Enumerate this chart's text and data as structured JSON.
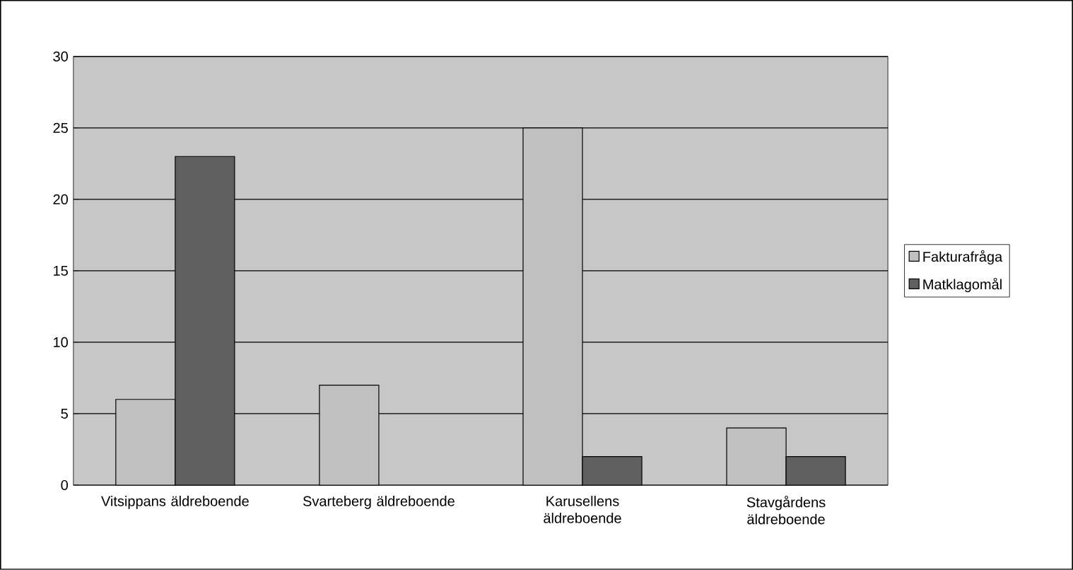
{
  "chart_data": {
    "type": "bar",
    "categories": [
      "Vitsippans äldreboende",
      "Svarteberg äldreboende",
      "Karusellens äldreboende",
      "Stavgårdens äldreboende"
    ],
    "series": [
      {
        "name": "Fakturafråga",
        "color": "#c0c0c0",
        "values": [
          6,
          7,
          25,
          4
        ]
      },
      {
        "name": "Matklagomål",
        "color": "#606060",
        "values": [
          23,
          null,
          2,
          2
        ]
      }
    ],
    "ylim": [
      0,
      30
    ],
    "yticks": [
      0,
      5,
      10,
      15,
      20,
      25,
      30
    ],
    "grid": "y",
    "legend": "right"
  }
}
